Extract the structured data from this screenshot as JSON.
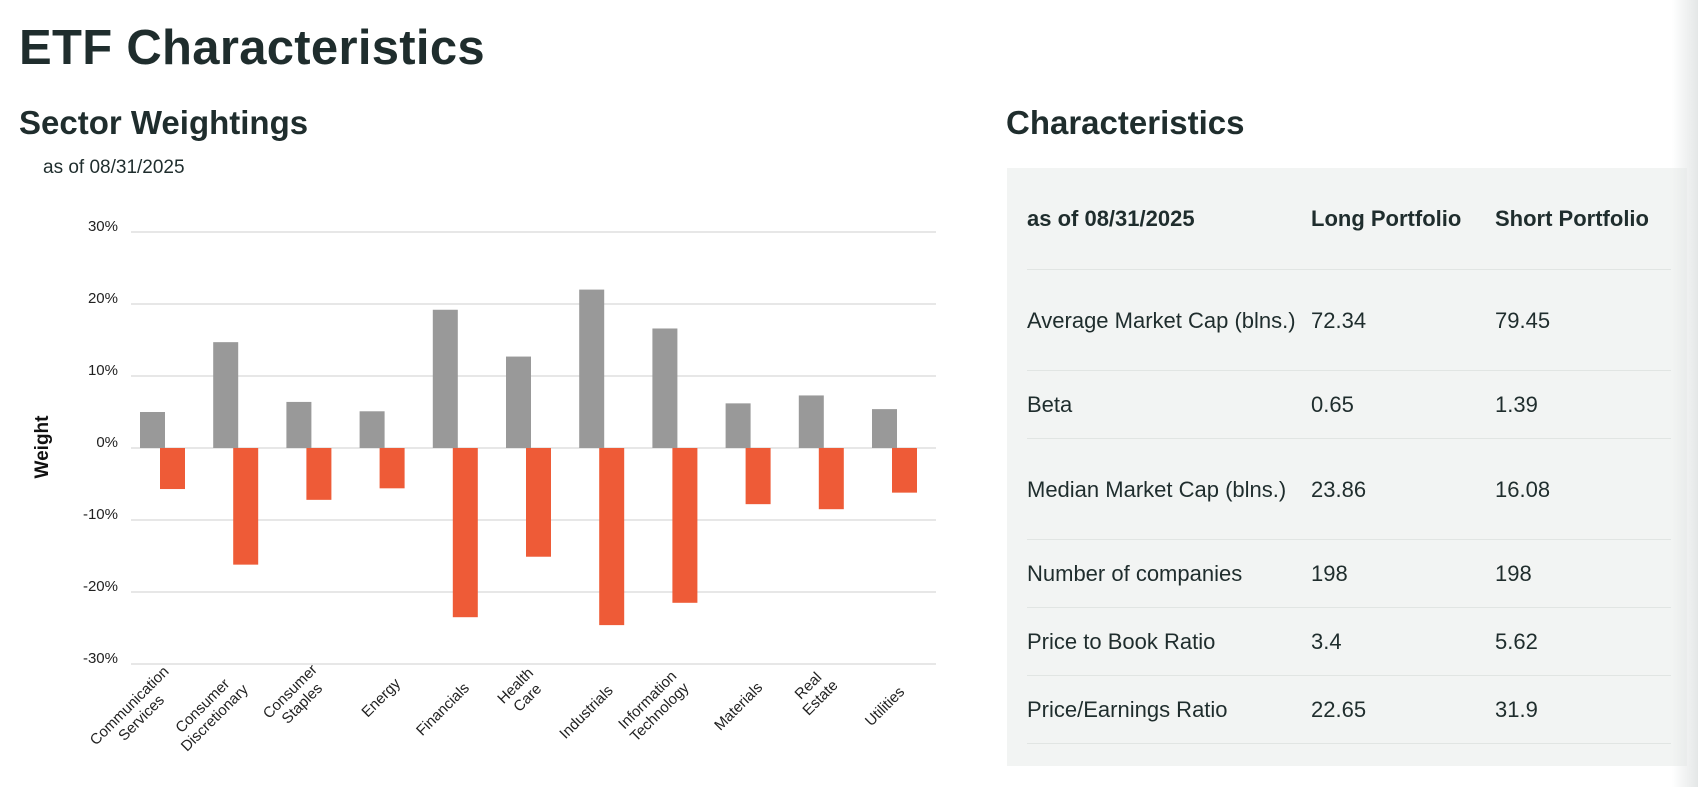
{
  "page_title": "ETF Characteristics",
  "sector_section": {
    "title": "Sector Weightings",
    "as_of": "as of 08/31/2025"
  },
  "chart_data": {
    "type": "bar",
    "title": "Sector Weightings",
    "subtitle": "as of 08/31/2025",
    "xlabel": "",
    "ylabel": "Weight",
    "ylim": [
      -30,
      30
    ],
    "yticks": [
      30,
      20,
      10,
      0,
      -10,
      -20,
      -30
    ],
    "ytick_labels": [
      "30%",
      "20%",
      "10%",
      "0%",
      "-10%",
      "-20%",
      "-30%"
    ],
    "grid": true,
    "categories": [
      [
        "Communication",
        "Services"
      ],
      [
        "Consumer",
        "Discretionary"
      ],
      [
        "Consumer",
        "Staples"
      ],
      [
        "Energy"
      ],
      [
        "Financials"
      ],
      [
        "Health",
        "Care"
      ],
      [
        "Industrials"
      ],
      [
        "Information",
        "Technology"
      ],
      [
        "Materials"
      ],
      [
        "Real",
        "Estate"
      ],
      [
        "Utilities"
      ]
    ],
    "series": [
      {
        "name": "Long",
        "color": "#999999",
        "values": [
          5.0,
          14.7,
          6.4,
          5.1,
          19.2,
          12.7,
          22.0,
          16.6,
          6.2,
          7.3,
          5.4
        ]
      },
      {
        "name": "Short",
        "color": "#ee5b37",
        "values": [
          -5.7,
          -16.2,
          -7.2,
          -5.6,
          -23.5,
          -15.1,
          -24.6,
          -21.5,
          -7.8,
          -8.5,
          -6.2
        ]
      }
    ]
  },
  "characteristics": {
    "title": "Characteristics",
    "header": [
      "as of 08/31/2025",
      "Long Portfolio",
      "Short Portfolio"
    ],
    "rows": [
      {
        "label": "Average Market Cap (blns.)",
        "long": "72.34",
        "short": "79.45"
      },
      {
        "label": "Beta",
        "long": "0.65",
        "short": "1.39"
      },
      {
        "label": "Median Market Cap (blns.)",
        "long": "23.86",
        "short": "16.08"
      },
      {
        "label": "Number of companies",
        "long": "198",
        "short": "198"
      },
      {
        "label": "Price to Book Ratio",
        "long": "3.4",
        "short": "5.62"
      },
      {
        "label": "Price/Earnings Ratio",
        "long": "22.65",
        "short": "31.9"
      }
    ]
  }
}
